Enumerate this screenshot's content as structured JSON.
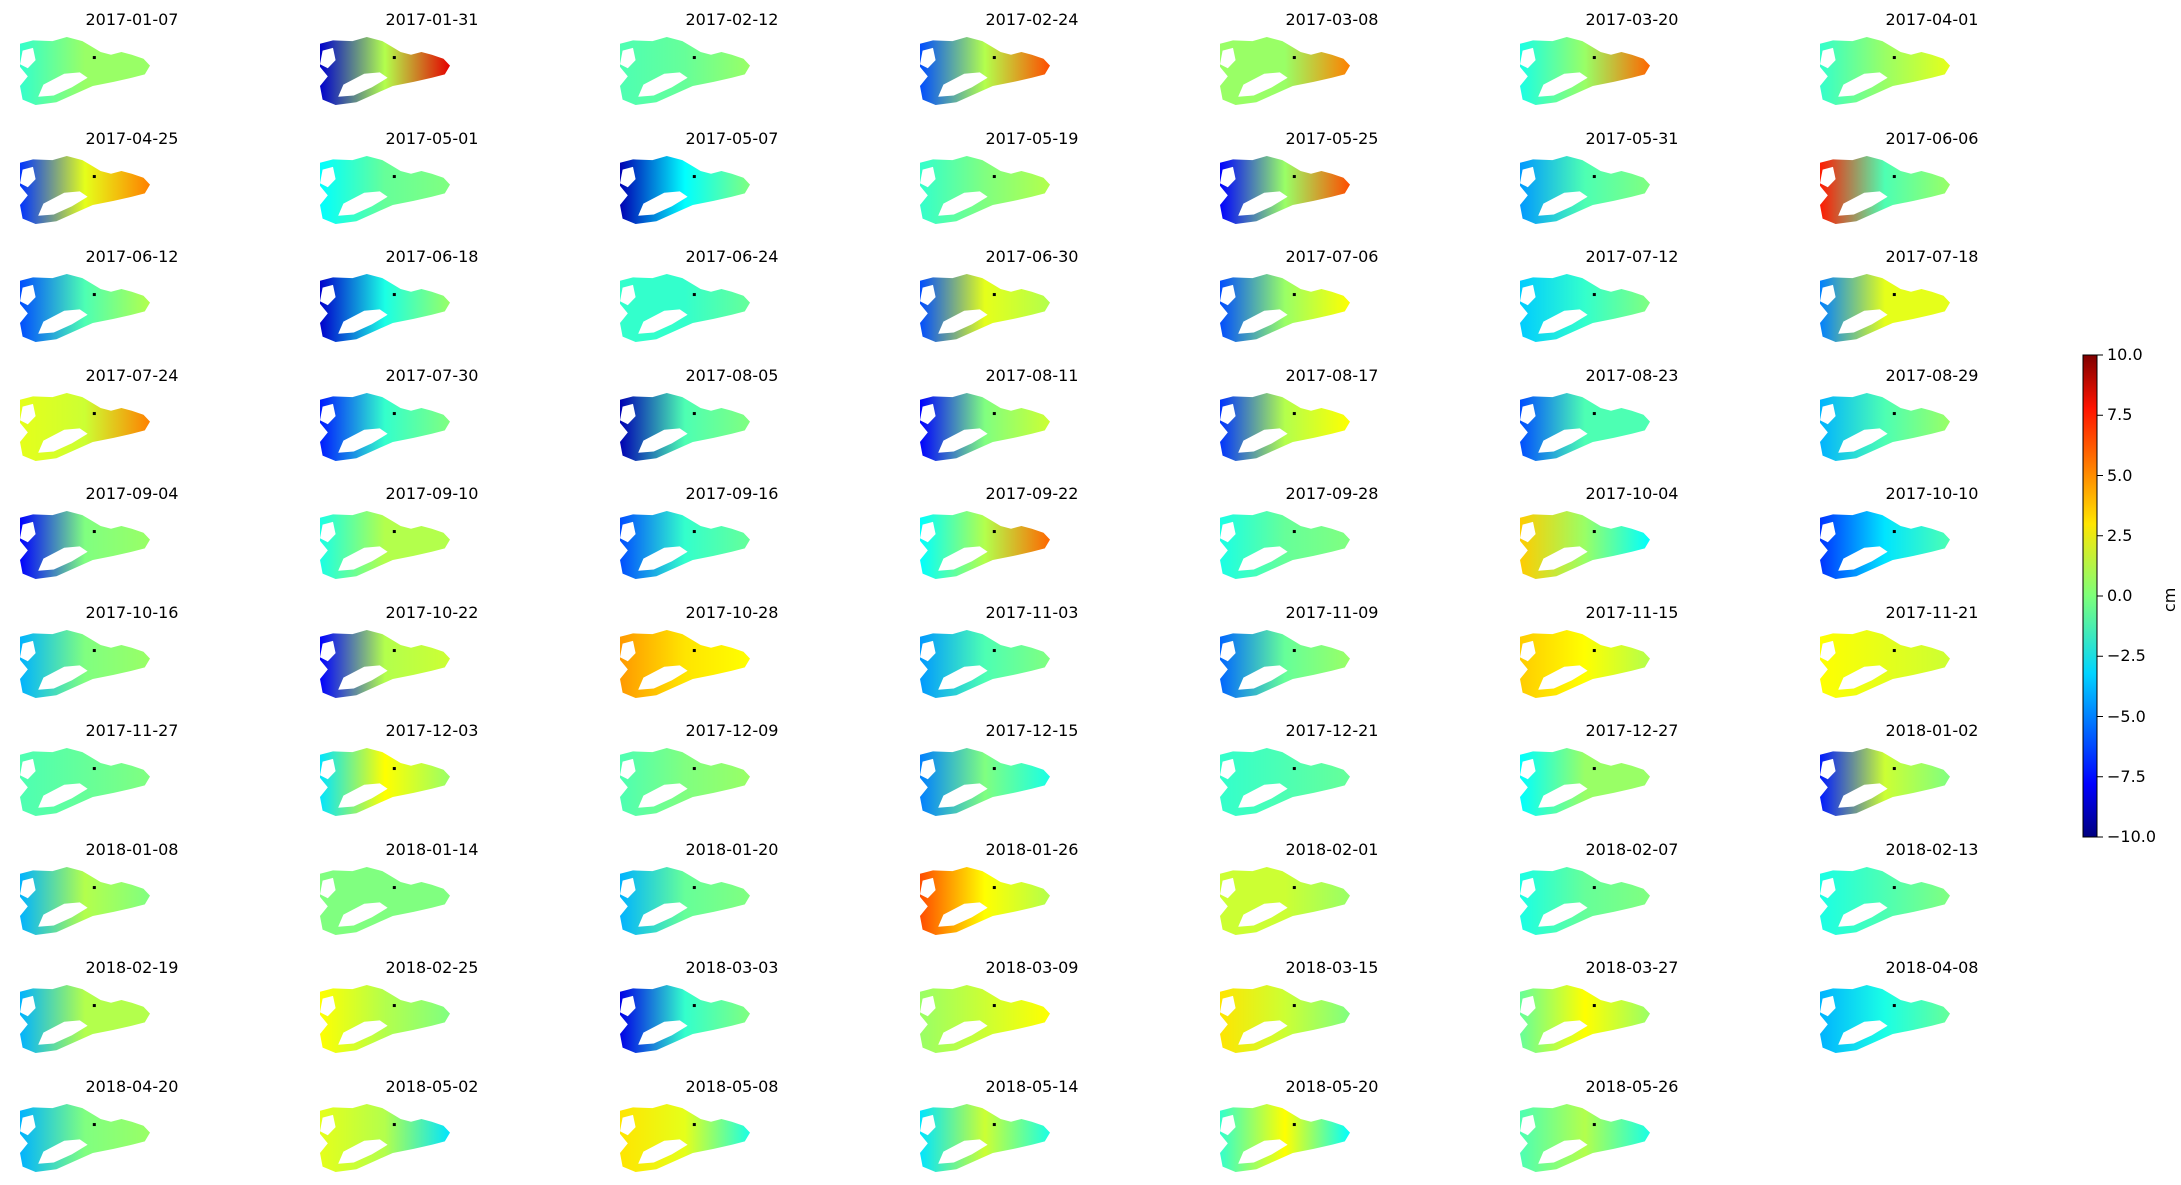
{
  "chart_data": {
    "type": "heatmap",
    "layout": {
      "rows": 10,
      "cols": 7
    },
    "colormap": "jet",
    "vmin": -10.0,
    "vmax": 10.0,
    "colorbar": {
      "label": "cm",
      "ticks": [
        -10.0,
        -7.5,
        -5.0,
        -2.5,
        0.0,
        2.5,
        5.0,
        7.5,
        10.0
      ],
      "tick_labels": [
        "−10.0",
        "−7.5",
        "−5.0",
        "−2.5",
        "0.0",
        "2.5",
        "5.0",
        "7.5",
        "10.0"
      ]
    },
    "panels": [
      {
        "date": "2017-01-07",
        "w": -1.5,
        "c": 0.5,
        "e": 0.5
      },
      {
        "date": "2017-01-31",
        "w": -8.5,
        "c": 1.0,
        "e": 8.0
      },
      {
        "date": "2017-02-12",
        "w": -1.0,
        "c": -0.5,
        "e": 0.5
      },
      {
        "date": "2017-02-24",
        "w": -6.0,
        "c": 1.0,
        "e": 6.0
      },
      {
        "date": "2017-03-08",
        "w": 0.5,
        "c": 0.5,
        "e": 5.0
      },
      {
        "date": "2017-03-20",
        "w": -2.0,
        "c": 0.5,
        "e": 5.5
      },
      {
        "date": "2017-04-01",
        "w": -1.5,
        "c": 0.5,
        "e": 2.0
      },
      {
        "date": "2017-04-25",
        "w": -6.5,
        "c": 2.0,
        "e": 5.0
      },
      {
        "date": "2017-05-01",
        "w": -2.5,
        "c": -0.5,
        "e": 0.0
      },
      {
        "date": "2017-05-07",
        "w": -9.0,
        "c": -2.5,
        "e": 0.0
      },
      {
        "date": "2017-05-19",
        "w": -1.5,
        "c": 0.0,
        "e": 1.0
      },
      {
        "date": "2017-05-25",
        "w": -7.5,
        "c": 0.5,
        "e": 6.0
      },
      {
        "date": "2017-05-31",
        "w": -4.5,
        "c": -1.0,
        "e": 0.0
      },
      {
        "date": "2017-06-06",
        "w": 7.0,
        "c": -1.0,
        "e": 0.5
      },
      {
        "date": "2017-06-12",
        "w": -6.0,
        "c": -1.0,
        "e": 1.0
      },
      {
        "date": "2017-06-18",
        "w": -8.5,
        "c": -2.0,
        "e": 0.5
      },
      {
        "date": "2017-06-24",
        "w": -1.5,
        "c": -1.5,
        "e": -0.5
      },
      {
        "date": "2017-06-30",
        "w": -6.0,
        "c": 2.0,
        "e": 1.0
      },
      {
        "date": "2017-07-06",
        "w": -6.0,
        "c": 0.5,
        "e": 2.5
      },
      {
        "date": "2017-07-12",
        "w": -3.5,
        "c": -1.5,
        "e": 0.0
      },
      {
        "date": "2017-07-18",
        "w": -5.0,
        "c": 2.0,
        "e": 2.0
      },
      {
        "date": "2017-07-24",
        "w": 2.0,
        "c": 1.5,
        "e": 5.0
      },
      {
        "date": "2017-07-30",
        "w": -7.0,
        "c": -1.5,
        "e": 0.0
      },
      {
        "date": "2017-08-05",
        "w": -9.0,
        "c": -1.0,
        "e": 0.0
      },
      {
        "date": "2017-08-11",
        "w": -7.5,
        "c": 0.0,
        "e": 1.5
      },
      {
        "date": "2017-08-17",
        "w": -6.5,
        "c": 1.0,
        "e": 2.5
      },
      {
        "date": "2017-08-23",
        "w": -6.0,
        "c": -1.0,
        "e": -1.0
      },
      {
        "date": "2017-08-29",
        "w": -4.0,
        "c": -1.0,
        "e": 0.5
      },
      {
        "date": "2017-09-04",
        "w": -7.5,
        "c": 0.0,
        "e": 0.5
      },
      {
        "date": "2017-09-10",
        "w": -2.0,
        "c": 1.0,
        "e": 1.0
      },
      {
        "date": "2017-09-16",
        "w": -6.0,
        "c": -1.5,
        "e": -0.5
      },
      {
        "date": "2017-09-22",
        "w": -2.5,
        "c": 1.0,
        "e": 5.5
      },
      {
        "date": "2017-09-28",
        "w": -2.0,
        "c": -0.5,
        "e": 0.0
      },
      {
        "date": "2017-10-04",
        "w": 3.5,
        "c": 0.5,
        "e": -2.5
      },
      {
        "date": "2017-10-10",
        "w": -6.5,
        "c": -3.0,
        "e": -1.0
      },
      {
        "date": "2017-10-16",
        "w": -4.0,
        "c": 0.0,
        "e": 0.5
      },
      {
        "date": "2017-10-22",
        "w": -7.5,
        "c": 1.0,
        "e": 1.5
      },
      {
        "date": "2017-10-28",
        "w": 4.5,
        "c": 3.0,
        "e": 2.5
      },
      {
        "date": "2017-11-03",
        "w": -4.5,
        "c": -1.0,
        "e": 0.0
      },
      {
        "date": "2017-11-09",
        "w": -5.5,
        "c": -0.5,
        "e": 0.5
      },
      {
        "date": "2017-11-15",
        "w": 3.5,
        "c": 2.5,
        "e": 1.0
      },
      {
        "date": "2017-11-21",
        "w": 2.5,
        "c": 2.0,
        "e": 1.5
      },
      {
        "date": "2017-11-27",
        "w": -1.0,
        "c": -0.5,
        "e": 0.0
      },
      {
        "date": "2017-12-03",
        "w": -3.0,
        "c": 2.5,
        "e": 0.5
      },
      {
        "date": "2017-12-09",
        "w": -1.0,
        "c": 0.0,
        "e": 0.5
      },
      {
        "date": "2017-12-15",
        "w": -5.0,
        "c": 0.0,
        "e": -2.0
      },
      {
        "date": "2017-12-21",
        "w": -1.5,
        "c": -1.0,
        "e": -0.5
      },
      {
        "date": "2017-12-27",
        "w": -2.5,
        "c": 0.5,
        "e": 0.5
      },
      {
        "date": "2018-01-02",
        "w": -7.0,
        "c": 1.5,
        "e": 0.0
      },
      {
        "date": "2018-01-08",
        "w": -4.0,
        "c": 1.0,
        "e": 0.0
      },
      {
        "date": "2018-01-14",
        "w": 0.0,
        "c": 0.0,
        "e": 0.0
      },
      {
        "date": "2018-01-20",
        "w": -4.0,
        "c": -0.5,
        "e": 0.0
      },
      {
        "date": "2018-01-26",
        "w": 6.0,
        "c": 2.5,
        "e": 1.0
      },
      {
        "date": "2018-02-01",
        "w": 1.5,
        "c": 1.5,
        "e": 0.5
      },
      {
        "date": "2018-02-07",
        "w": -2.0,
        "c": -0.5,
        "e": 0.0
      },
      {
        "date": "2018-02-13",
        "w": -2.0,
        "c": -1.0,
        "e": 0.0
      },
      {
        "date": "2018-02-19",
        "w": -4.0,
        "c": 1.0,
        "e": 1.0
      },
      {
        "date": "2018-02-25",
        "w": 2.5,
        "c": 1.0,
        "e": 0.0
      },
      {
        "date": "2018-03-03",
        "w": -8.0,
        "c": -1.5,
        "e": 0.0
      },
      {
        "date": "2018-03-09",
        "w": 0.5,
        "c": 1.5,
        "e": 2.5
      },
      {
        "date": "2018-03-15",
        "w": 3.0,
        "c": 1.5,
        "e": 0.0
      },
      {
        "date": "2018-03-27",
        "w": -0.5,
        "c": 2.5,
        "e": 0.5
      },
      {
        "date": "2018-04-08",
        "w": -4.0,
        "c": -2.0,
        "e": -0.5
      },
      {
        "date": "2018-04-20",
        "w": -4.0,
        "c": 0.0,
        "e": 0.5
      },
      {
        "date": "2018-05-02",
        "w": 2.0,
        "c": 1.0,
        "e": -3.0
      },
      {
        "date": "2018-05-08",
        "w": 3.0,
        "c": 2.0,
        "e": -2.0
      },
      {
        "date": "2018-05-14",
        "w": -3.0,
        "c": 1.5,
        "e": -2.0
      },
      {
        "date": "2018-05-20",
        "w": -1.5,
        "c": 2.5,
        "e": -2.5
      },
      {
        "date": "2018-05-26",
        "w": -1.0,
        "c": 1.0,
        "e": -2.0
      }
    ]
  }
}
